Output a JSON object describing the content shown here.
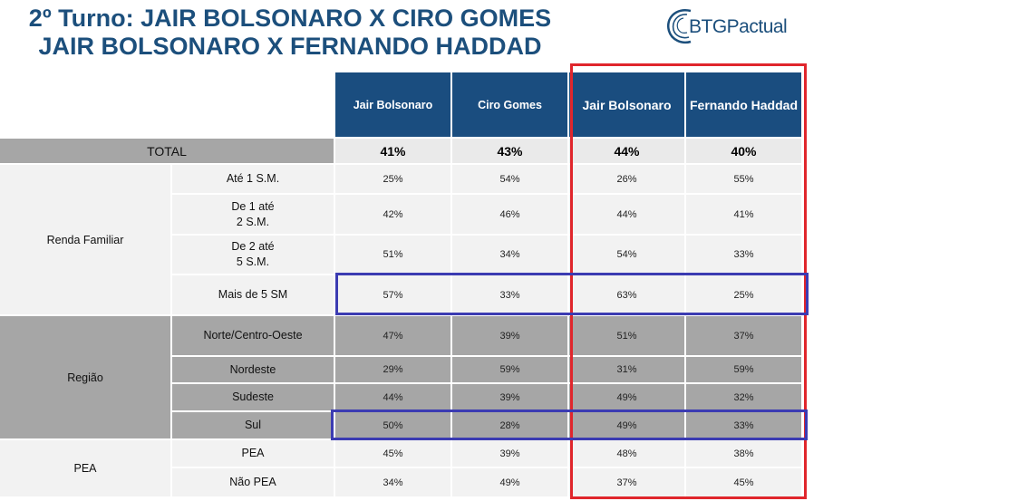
{
  "title_lines": [
    "2º Turno: JAIR BOLSONARO X CIRO GOMES",
    "JAIR BOLSONARO X FERNANDO HADDAD"
  ],
  "logo": "BTGPactual",
  "colors": {
    "header_blue": "#1a4d7f",
    "title_blue": "#1c4f7c",
    "highlight_red": "#e0262c",
    "highlight_blue": "#3b3bb2",
    "band_gray": "#a6a6a6",
    "band_light": "#f2f2f2"
  },
  "chart_data": {
    "type": "table",
    "columns": [
      "Jair Bolsonaro",
      "Ciro Gomes",
      "Jair Bolsonaro",
      "Fernando Haddad"
    ],
    "total": {
      "label": "TOTAL",
      "values": [
        "41%",
        "43%",
        "44%",
        "40%"
      ]
    },
    "groups": [
      {
        "name": "Renda Familiar",
        "rows": [
          {
            "label": "Até 1 S.M.",
            "values": [
              "25%",
              "54%",
              "26%",
              "55%"
            ]
          },
          {
            "label": "De 1 até 2 S.M.",
            "values": [
              "42%",
              "46%",
              "44%",
              "41%"
            ]
          },
          {
            "label": "De 2 até 5 S.M.",
            "values": [
              "51%",
              "34%",
              "54%",
              "33%"
            ]
          },
          {
            "label": "Mais de 5 SM",
            "values": [
              "57%",
              "33%",
              "63%",
              "25%"
            ]
          }
        ]
      },
      {
        "name": "Região",
        "rows": [
          {
            "label": "Norte/Centro-Oeste",
            "values": [
              "47%",
              "39%",
              "51%",
              "37%"
            ]
          },
          {
            "label": "Nordeste",
            "values": [
              "29%",
              "59%",
              "31%",
              "59%"
            ]
          },
          {
            "label": "Sudeste",
            "values": [
              "44%",
              "39%",
              "49%",
              "32%"
            ]
          },
          {
            "label": "Sul",
            "values": [
              "50%",
              "28%",
              "49%",
              "33%"
            ]
          }
        ]
      },
      {
        "name": "PEA",
        "rows": [
          {
            "label": "PEA",
            "values": [
              "45%",
              "39%",
              "48%",
              "38%"
            ]
          },
          {
            "label": "Não PEA",
            "values": [
              "34%",
              "49%",
              "37%",
              "45%"
            ]
          }
        ]
      }
    ]
  }
}
